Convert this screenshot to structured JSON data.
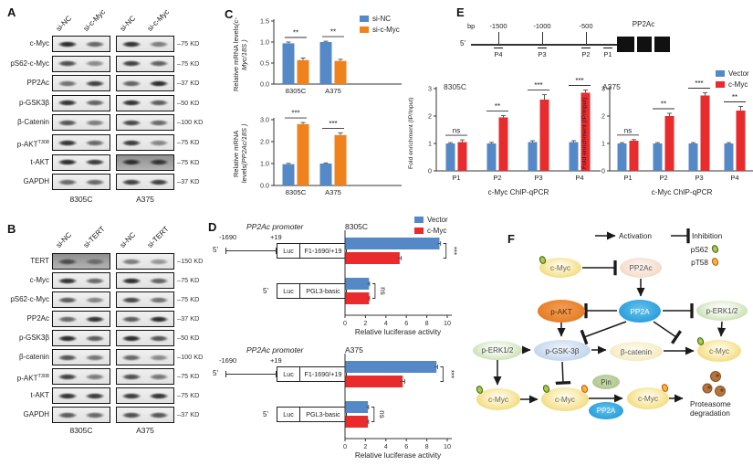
{
  "colors": {
    "si_nc_blue": "#5488c7",
    "si_cmyc_orange": "#f0821e",
    "vector_blue": "#5488c7",
    "cmyc_red": "#e92b2d"
  },
  "panelA": {
    "label": "A",
    "lane_labels": [
      "si-NC",
      "si-c-Myc",
      "si-NC",
      "si-c-Myc"
    ],
    "cell_lines": [
      "8305C",
      "A375"
    ],
    "rows": [
      {
        "protein": "c-Myc",
        "kd": "75 KD",
        "bands": [
          [
            0.95,
            0.5
          ],
          [
            0.9,
            0.35
          ]
        ]
      },
      {
        "protein": "pS62-c-Myc",
        "kd": "75 KD",
        "bands": [
          [
            0.7,
            0.25
          ],
          [
            0.8,
            0.55
          ]
        ]
      },
      {
        "protein": "PP2Ac",
        "kd": "37 KD",
        "bands": [
          [
            0.45,
            0.8
          ],
          [
            0.55,
            0.95
          ]
        ]
      },
      {
        "protein": "p-GSK3β",
        "kd": "50 KD",
        "bands": [
          [
            0.9,
            0.55
          ],
          [
            0.9,
            0.6
          ]
        ]
      },
      {
        "protein": "β-Catenin",
        "kd": "100 KD",
        "bands": [
          [
            0.65,
            0.35
          ],
          [
            0.75,
            0.5
          ]
        ]
      },
      {
        "protein": "p-AKT",
        "protein_sup": "T308",
        "kd": "75 KD",
        "bands": [
          [
            0.9,
            0.5
          ],
          [
            0.85,
            0.3
          ]
        ]
      },
      {
        "protein": "t-AKT",
        "kd": "75 KD",
        "bands": [
          [
            0.95,
            0.85
          ],
          [
            0.9,
            0.85
          ]
        ],
        "dark": [
          false,
          true
        ]
      },
      {
        "protein": "GAPDH",
        "kd": "37 KD",
        "bands": [
          [
            0.5,
            0.5
          ],
          [
            0.8,
            0.8
          ]
        ]
      }
    ]
  },
  "panelB": {
    "label": "B",
    "lane_labels": [
      "si-NC",
      "si-TERT",
      "si-NC",
      "si-TERT"
    ],
    "cell_lines": [
      "8305C",
      "A375"
    ],
    "rows": [
      {
        "protein": "TERT",
        "kd": "150 KD",
        "bands": [
          [
            0.55,
            0.2
          ],
          [
            0.35,
            0.15
          ]
        ],
        "dark": [
          true,
          false
        ]
      },
      {
        "protein": "c-Myc",
        "kd": "75 KD",
        "bands": [
          [
            0.9,
            0.5
          ],
          [
            0.95,
            0.55
          ]
        ]
      },
      {
        "protein": "pS62-c-Myc",
        "kd": "75 KD",
        "bands": [
          [
            0.6,
            0.3
          ],
          [
            0.75,
            0.45
          ]
        ]
      },
      {
        "protein": "PP2Ac",
        "kd": "37 KD",
        "bands": [
          [
            0.5,
            0.9
          ],
          [
            0.6,
            0.95
          ]
        ]
      },
      {
        "protein": "p-GSK3β",
        "kd": "50 KD",
        "bands": [
          [
            0.95,
            0.6
          ],
          [
            0.95,
            0.65
          ]
        ]
      },
      {
        "protein": "β-catenin",
        "kd": "100 KD",
        "bands": [
          [
            0.65,
            0.4
          ],
          [
            0.5,
            0.25
          ]
        ]
      },
      {
        "protein": "p-AKT",
        "protein_sup": "T308",
        "kd": "75 KD",
        "bands": [
          [
            0.8,
            0.35
          ],
          [
            0.7,
            0.4
          ]
        ]
      },
      {
        "protein": "t-AKT",
        "kd": "75 KD",
        "bands": [
          [
            0.9,
            0.85
          ],
          [
            0.85,
            0.9
          ]
        ]
      },
      {
        "protein": "GAPDH",
        "kd": "37 KD",
        "bands": [
          [
            0.6,
            0.5
          ],
          [
            0.7,
            0.65
          ]
        ]
      }
    ]
  },
  "panelC": {
    "label": "C",
    "ylabel1": "Relative mRNA levels",
    "ylabel2_top": "(c-Myc/18S )",
    "ylabel2_bottom": "(PP2Ac/18S )"
  },
  "panelD": {
    "label": "D",
    "promoter": "PP2Ac promoter",
    "start": "-1690",
    "end": "+19",
    "five_prime": "5'",
    "luc": "Luc",
    "f1": "F1-1690/+19",
    "pgl3": "PGL3-basic",
    "title_top": "8305C",
    "title_bottom": "A375"
  },
  "panelE": {
    "label": "E",
    "bp": "bp",
    "ticks": [
      "-1500",
      "-1000",
      "-500"
    ],
    "probes": [
      "P4",
      "P3",
      "P2",
      "P1"
    ],
    "gene": "PP2Ac",
    "five_prime": "5'"
  },
  "chart_data": [
    {
      "id": "c_top",
      "type": "bar",
      "title": "",
      "xlabel": "",
      "ylabel": "Relative mRNA levels (c-Myc/18S)",
      "categories": [
        "8305C",
        "A375"
      ],
      "series": [
        {
          "name": "si-NC",
          "color": "#5488c7",
          "values": [
            0.97,
            1.0
          ],
          "errors": [
            0.03,
            0.02
          ]
        },
        {
          "name": "si-c-Myc",
          "color": "#f0821e",
          "values": [
            0.57,
            0.55
          ],
          "errors": [
            0.05,
            0.04
          ]
        }
      ],
      "ylim": [
        0,
        1.5
      ],
      "yticks": [
        0,
        0.5,
        1.0,
        1.5
      ],
      "ytick_labels": [
        "0.0",
        "0.5",
        "1.0",
        "1.5"
      ],
      "sig": [
        "**",
        "**"
      ],
      "legend_position": "top-right"
    },
    {
      "id": "c_bottom",
      "type": "bar",
      "title": "",
      "xlabel": "",
      "ylabel": "Relative mRNA levels (PP2Ac/18S)",
      "categories": [
        "8305C",
        "A375"
      ],
      "series": [
        {
          "name": "si-NC",
          "color": "#5488c7",
          "values": [
            0.97,
            1.0
          ],
          "errors": [
            0.04,
            0.03
          ]
        },
        {
          "name": "si-c-Myc",
          "color": "#f0821e",
          "values": [
            2.8,
            2.3
          ],
          "errors": [
            0.07,
            0.1
          ]
        }
      ],
      "ylim": [
        0,
        3.0
      ],
      "yticks": [
        0,
        1.0,
        2.0,
        3.0
      ],
      "ytick_labels": [
        "0.0",
        "1.0",
        "2.0",
        "3.0"
      ],
      "sig": [
        "***",
        "***"
      ]
    },
    {
      "id": "d_8305c",
      "type": "hbar",
      "title": "8305C",
      "xlabel": "Relative luciferase activity",
      "categories": [
        "F1-1690/+19",
        "PGL3-basic"
      ],
      "series": [
        {
          "name": "Vector",
          "color": "#5488c7",
          "values": [
            9.2,
            2.3
          ],
          "errors": [
            0.15,
            0.1
          ]
        },
        {
          "name": "c-Myc",
          "color": "#e92b2d",
          "values": [
            5.3,
            2.3
          ],
          "errors": [
            0.2,
            0.1
          ]
        }
      ],
      "xlim": [
        0,
        10
      ],
      "xticks": [
        0,
        2,
        4,
        6,
        8,
        10
      ],
      "sig": [
        "***",
        "ns"
      ]
    },
    {
      "id": "d_a375",
      "type": "hbar",
      "title": "A375",
      "xlabel": "Relative luciferase activity",
      "categories": [
        "F1-1690/+19",
        "PGL3-basic"
      ],
      "series": [
        {
          "name": "Vector",
          "color": "#5488c7",
          "values": [
            8.9,
            2.2
          ],
          "errors": [
            0.15,
            0.1
          ]
        },
        {
          "name": "c-Myc",
          "color": "#e92b2d",
          "values": [
            5.6,
            2.2
          ],
          "errors": [
            0.25,
            0.1
          ]
        }
      ],
      "xlim": [
        0,
        10
      ],
      "xticks": [
        0,
        2,
        4,
        6,
        8,
        10
      ],
      "sig": [
        "***",
        "ns"
      ]
    },
    {
      "id": "e_8305c",
      "type": "bar",
      "title": "8305C",
      "xlabel": "c-Myc ChIP-qPCR",
      "ylabel": "Fold enrichment (IP/Input)",
      "categories": [
        "P1",
        "P2",
        "P3",
        "P4"
      ],
      "series": [
        {
          "name": "Vector",
          "color": "#5488c7",
          "values": [
            1.0,
            1.0,
            1.05,
            1.05
          ],
          "errors": [
            0.03,
            0.04,
            0.05,
            0.05
          ]
        },
        {
          "name": "c-Myc",
          "color": "#e92b2d",
          "values": [
            1.05,
            1.95,
            2.6,
            2.85
          ],
          "errors": [
            0.08,
            0.07,
            0.18,
            0.1
          ]
        }
      ],
      "ylim": [
        0,
        3
      ],
      "yticks": [
        0,
        1,
        2,
        3
      ],
      "ytick_labels": [
        "0",
        "1",
        "2",
        "3"
      ],
      "sig": [
        "ns",
        "**",
        "***",
        "***"
      ]
    },
    {
      "id": "e_a375",
      "type": "bar",
      "title": "A375",
      "xlabel": "c-Myc ChIP-qPCR",
      "ylabel": "Fold enrichment (IP/Input)",
      "categories": [
        "P1",
        "P2",
        "P3",
        "P4"
      ],
      "series": [
        {
          "name": "Vector",
          "color": "#5488c7",
          "values": [
            1.0,
            1.0,
            1.0,
            1.0
          ],
          "errors": [
            0.03,
            0.03,
            0.03,
            0.03
          ]
        },
        {
          "name": "c-Myc",
          "color": "#e92b2d",
          "values": [
            1.1,
            2.0,
            2.75,
            2.2
          ],
          "errors": [
            0.04,
            0.1,
            0.1,
            0.15
          ]
        }
      ],
      "ylim": [
        0,
        3
      ],
      "yticks": [
        0,
        1,
        2,
        3
      ],
      "ytick_labels": [
        "0",
        "1",
        "2",
        "3"
      ],
      "sig": [
        "ns",
        "**",
        "***",
        "**"
      ]
    }
  ],
  "pathway": {
    "label": "F",
    "legend": {
      "activation": "Activation",
      "inhibition": "Inhibition",
      "ps62": "pS62",
      "pt58": "pT58"
    },
    "nodes": {
      "cmyc_top": "c-Myc",
      "pp2ac": "PP2Ac",
      "pp2a": "PP2A",
      "pakt": "p-AKT",
      "perk_right": "p-ERK1/2",
      "perk_left": "p-ERK1/2",
      "pgsk": "p-GSK-3β",
      "bcatenin": "β-catenin",
      "cmyc_right": "c-Myc",
      "cmyc_b1": "c-Myc",
      "cmyc_b2": "c-Myc",
      "pin": "Pin",
      "pp2a2": "PP2A",
      "cmyc_b3": "c-Myc",
      "proteasome_1": "Proteasome",
      "proteasome_2": "degradation"
    }
  }
}
